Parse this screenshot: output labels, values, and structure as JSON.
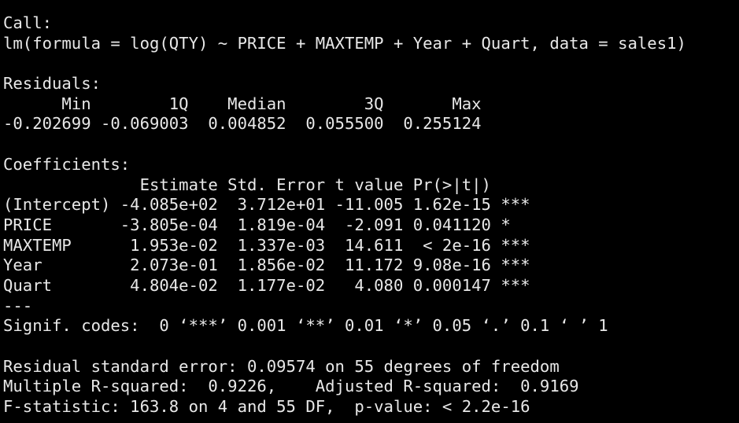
{
  "console": {
    "lines": [
      "Call:",
      "lm(formula = log(QTY) ~ PRICE + MAXTEMP + Year + Quart, data = sales1)",
      "",
      "Residuals:",
      "      Min        1Q    Median        3Q       Max ",
      "-0.202699 -0.069003  0.004852  0.055500  0.255124 ",
      "",
      "Coefficients:",
      "              Estimate Std. Error t value Pr(>|t|)    ",
      "(Intercept) -4.085e+02  3.712e+01 -11.005 1.62e-15 ***",
      "PRICE       -3.805e-04  1.819e-04  -2.091 0.041120 *  ",
      "MAXTEMP      1.953e-02  1.337e-03  14.611  < 2e-16 ***",
      "Year         2.073e-01  1.856e-02  11.172 9.08e-16 ***",
      "Quart        4.804e-02  1.177e-02   4.080 0.000147 ***",
      "---",
      "Signif. codes:  0 ‘***’ 0.001 ‘**’ 0.01 ‘*’ 0.05 ‘.’ 0.1 ‘ ’ 1",
      "",
      "Residual standard error: 0.09574 on 55 degrees of freedom",
      "Multiple R-squared:  0.9226,\tAdjusted R-squared:  0.9169 ",
      "F-statistic: 163.8 on 4 and 55 DF,  p-value: < 2.2e-16"
    ]
  },
  "colors": {
    "background": "#000000",
    "text": "#e8e8e8"
  }
}
